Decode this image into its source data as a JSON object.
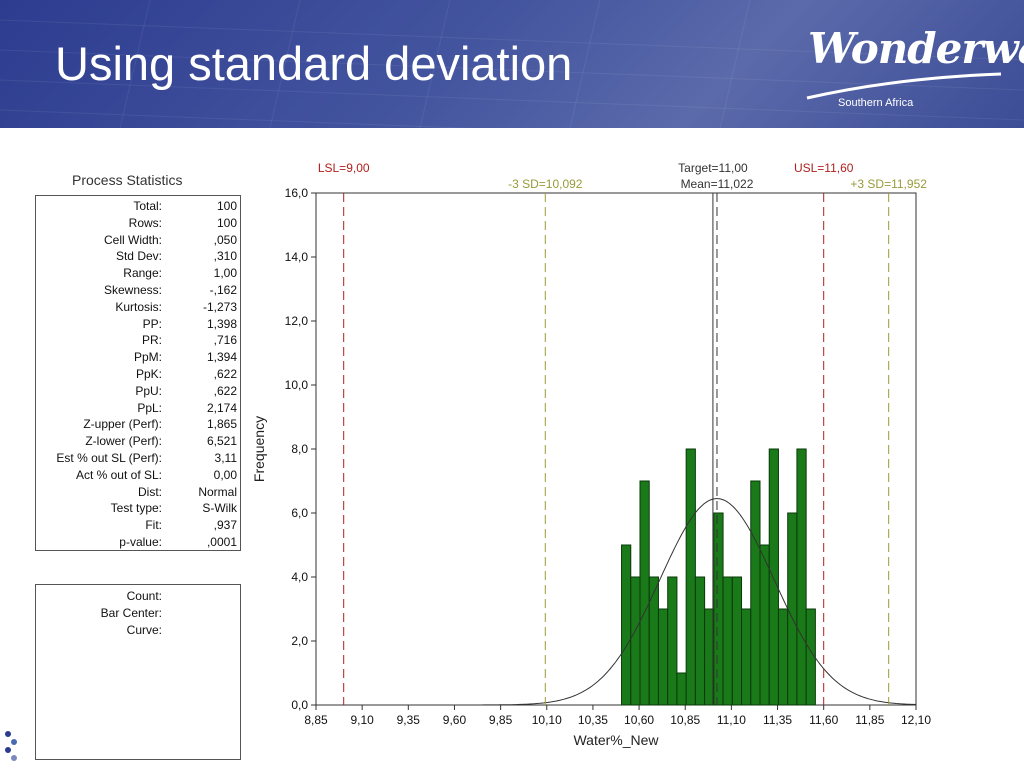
{
  "header": {
    "title": "Using standard deviation",
    "logo": {
      "wordmark": "Wonderware",
      "subtitle": "Southern Africa"
    }
  },
  "stats_panel": {
    "title": "Process Statistics",
    "rows": [
      {
        "label": "Total:",
        "value": "100"
      },
      {
        "label": "Rows:",
        "value": "100"
      },
      {
        "label": "Cell Width:",
        "value": ",050"
      },
      {
        "label": "Std Dev:",
        "value": ",310"
      },
      {
        "label": "Range:",
        "value": "1,00"
      },
      {
        "label": "Skewness:",
        "value": "-,162"
      },
      {
        "label": "Kurtosis:",
        "value": "-1,273"
      },
      {
        "label": "PP:",
        "value": "1,398"
      },
      {
        "label": "PR:",
        "value": ",716"
      },
      {
        "label": "PpM:",
        "value": "1,394"
      },
      {
        "label": "PpK:",
        "value": ",622"
      },
      {
        "label": "PpU:",
        "value": ",622"
      },
      {
        "label": "PpL:",
        "value": "2,174"
      },
      {
        "label": "Z-upper (Perf):",
        "value": "1,865"
      },
      {
        "label": "Z-lower (Perf):",
        "value": "6,521"
      },
      {
        "label": "Est % out SL (Perf):",
        "value": "3,11"
      },
      {
        "label": "Act % out of SL:",
        "value": "0,00"
      },
      {
        "label": "Dist:",
        "value": "Normal"
      },
      {
        "label": "Test type:",
        "value": "S-Wilk"
      },
      {
        "label": "Fit:",
        "value": ",937"
      },
      {
        "label": "p-value:",
        "value": ",0001"
      }
    ]
  },
  "info_panel": {
    "rows": [
      {
        "label": "Count:"
      },
      {
        "label": "Bar Center:"
      },
      {
        "label": "Curve:"
      }
    ]
  },
  "chart_data": {
    "type": "bar",
    "subtype": "histogram",
    "xlabel": "Water%_New",
    "ylabel": "Frequency",
    "xlim": [
      8.85,
      12.1
    ],
    "ylim": [
      0,
      16
    ],
    "x_tick_values": [
      8.85,
      9.1,
      9.35,
      9.6,
      9.85,
      10.1,
      10.35,
      10.6,
      10.85,
      11.1,
      11.35,
      11.6,
      11.85,
      12.1
    ],
    "x_tick_labels": [
      "8,85",
      "9,10",
      "9,35",
      "9,60",
      "9,85",
      "10,10",
      "10,35",
      "10,60",
      "10,85",
      "11,10",
      "11,35",
      "11,60",
      "11,85",
      "12,10"
    ],
    "y_tick_values": [
      0,
      2,
      4,
      6,
      8,
      10,
      12,
      14,
      16
    ],
    "y_tick_labels": [
      "0,0",
      "2,0",
      "4,0",
      "6,0",
      "8,0",
      "10,0",
      "12,0",
      "14,0",
      "16,0"
    ],
    "cell_width": 0.05,
    "bar_color": "#1a7a1a",
    "bins": [
      {
        "center": 10.53,
        "value": 5
      },
      {
        "center": 10.58,
        "value": 4
      },
      {
        "center": 10.63,
        "value": 7
      },
      {
        "center": 10.68,
        "value": 4
      },
      {
        "center": 10.73,
        "value": 3
      },
      {
        "center": 10.78,
        "value": 4
      },
      {
        "center": 10.83,
        "value": 1
      },
      {
        "center": 10.88,
        "value": 8
      },
      {
        "center": 10.93,
        "value": 4
      },
      {
        "center": 10.98,
        "value": 3
      },
      {
        "center": 11.03,
        "value": 6
      },
      {
        "center": 11.08,
        "value": 4
      },
      {
        "center": 11.13,
        "value": 4
      },
      {
        "center": 11.18,
        "value": 3
      },
      {
        "center": 11.23,
        "value": 7
      },
      {
        "center": 11.28,
        "value": 5
      },
      {
        "center": 11.33,
        "value": 8
      },
      {
        "center": 11.38,
        "value": 3
      },
      {
        "center": 11.43,
        "value": 6
      },
      {
        "center": 11.48,
        "value": 8
      },
      {
        "center": 11.53,
        "value": 3
      }
    ],
    "curve": {
      "mean": 11.022,
      "std": 0.31,
      "peak": 6.45,
      "color": "#333333"
    },
    "reference_lines": [
      {
        "name": "LSL",
        "label": "LSL=9,00",
        "x": 9.0,
        "color": "#b02020",
        "style": "dashed",
        "label_row": "top"
      },
      {
        "name": "minus-3sd",
        "label": "-3 SD=10,092",
        "x": 10.092,
        "color": "#9a9a3a",
        "style": "dashed",
        "label_row": "bottom"
      },
      {
        "name": "target",
        "label": "Target=11,00",
        "x": 11.0,
        "color": "#333333",
        "style": "solid",
        "label_row": "top"
      },
      {
        "name": "mean",
        "label": "Mean=11,022",
        "x": 11.022,
        "color": "#333333",
        "style": "dashed",
        "label_row": "bottom"
      },
      {
        "name": "USL",
        "label": "USL=11,60",
        "x": 11.6,
        "color": "#b02020",
        "style": "dashed",
        "label_row": "top"
      },
      {
        "name": "plus-3sd",
        "label": "+3 SD=11,952",
        "x": 11.952,
        "color": "#9a9a3a",
        "style": "dashed",
        "label_row": "bottom"
      }
    ]
  }
}
